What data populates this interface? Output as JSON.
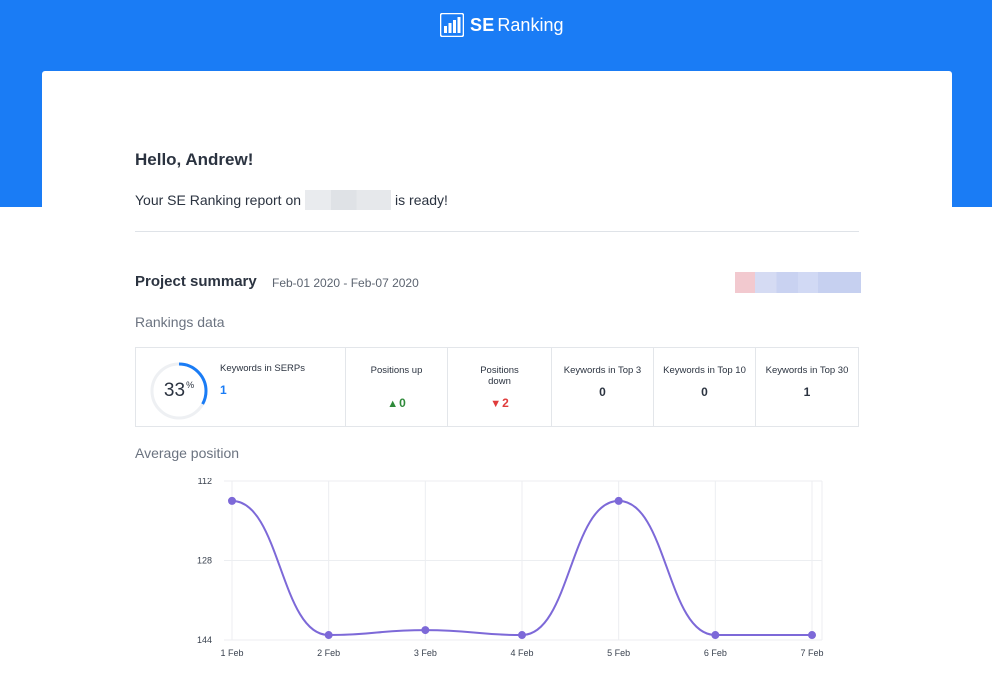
{
  "header": {
    "logo_se": "SE",
    "logo_ranking": "Ranking",
    "logo_icon": "bar-chart-icon",
    "background_color": "#1a7cf5"
  },
  "email": {
    "greeting": "Hello, Andrew!",
    "intro_before": "Your SE Ranking report on",
    "intro_after": "is ready!"
  },
  "summary": {
    "title": "Project summary",
    "dates": "Feb-01 2020 - Feb-07 2020",
    "rankings_label": "Rankings data",
    "average_label": "Average position"
  },
  "stats": {
    "serps_percent": 33,
    "serps_percent_text": "33",
    "percent_sign": "%",
    "serps_title": "Keywords in SERPs",
    "serps_value": "1",
    "positions_up_title": "Positions up",
    "positions_up_value": "0",
    "positions_down_title": "Positions down",
    "positions_down_value": "2",
    "top3_title": "Keywords in Top 3",
    "top3_value": "0",
    "top10_title": "Keywords in Top 10",
    "top10_value": "0",
    "top30_title": "Keywords in Top 30",
    "top30_value": "1",
    "up_color": "#2f8a3a",
    "down_color": "#e03c3c",
    "accent_color": "#1a7cf5"
  },
  "chart_data": {
    "type": "line",
    "title": "",
    "xlabel": "",
    "ylabel": "",
    "x": [
      "1 Feb",
      "2 Feb",
      "3 Feb",
      "4 Feb",
      "5 Feb",
      "6 Feb",
      "7 Feb"
    ],
    "y_ticks": [
      112,
      128,
      144
    ],
    "ylim": [
      112,
      144
    ],
    "y_inverted": true,
    "series": [
      {
        "values": [
          116,
          143,
          142,
          143,
          116,
          143,
          143
        ],
        "color": "#7d69d8"
      }
    ],
    "grid": true
  }
}
